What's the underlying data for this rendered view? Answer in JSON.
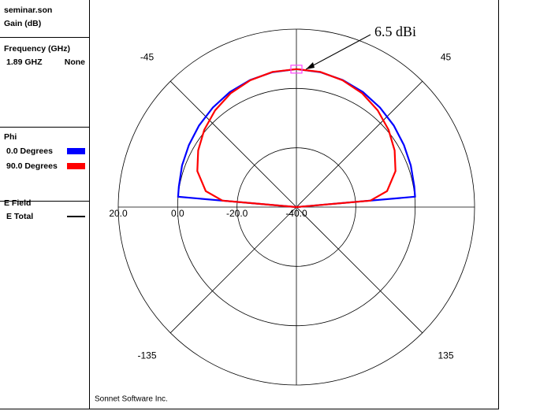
{
  "chart_data": {
    "type": "polar",
    "panel": {
      "file": "seminar.son",
      "quantity": "Gain (dB)",
      "frequency_title": "Frequency (GHz)",
      "frequency": "1.89 GHZ",
      "frequency_note": "None",
      "legend_title": "Phi",
      "field_title": "E Field",
      "field_name": "E Total",
      "field_color": "#000000"
    },
    "footer": "Sonnet Software Inc.",
    "annotation": "6.5 dBi",
    "theta": [
      -90,
      -85,
      -80,
      -70,
      -60,
      -50,
      -40,
      -30,
      -20,
      -10,
      0,
      10,
      20,
      30,
      40,
      50,
      60,
      70,
      80,
      85,
      90
    ],
    "series": [
      {
        "name": "0.0 Degrees",
        "color": "#0000ff",
        "values": [
          -40,
          0,
          0.2,
          1.0,
          1.8,
          2.8,
          3.8,
          4.8,
          5.6,
          6.2,
          6.5,
          6.2,
          5.6,
          4.8,
          3.8,
          2.8,
          1.8,
          1.0,
          0.3,
          0.1,
          -40
        ]
      },
      {
        "name": "90.0 Degrees",
        "color": "#ff0000",
        "values": [
          -40,
          -15,
          -9,
          -4.5,
          -1.8,
          0.5,
          2.6,
          4.3,
          5.5,
          6.3,
          6.5,
          6.3,
          5.5,
          4.3,
          2.6,
          0.5,
          -1.8,
          -4.5,
          -9,
          -15,
          -40
        ]
      }
    ],
    "rlim": [
      -40,
      20
    ],
    "rticks": [
      {
        "value": 20,
        "label": "20.0"
      },
      {
        "value": 0,
        "label": "0.0"
      },
      {
        "value": -20,
        "label": "-20.0"
      },
      {
        "value": -40,
        "label": "-40.0"
      }
    ],
    "angle_ticks": [
      -45,
      45,
      -135,
      135
    ],
    "grid": true
  }
}
